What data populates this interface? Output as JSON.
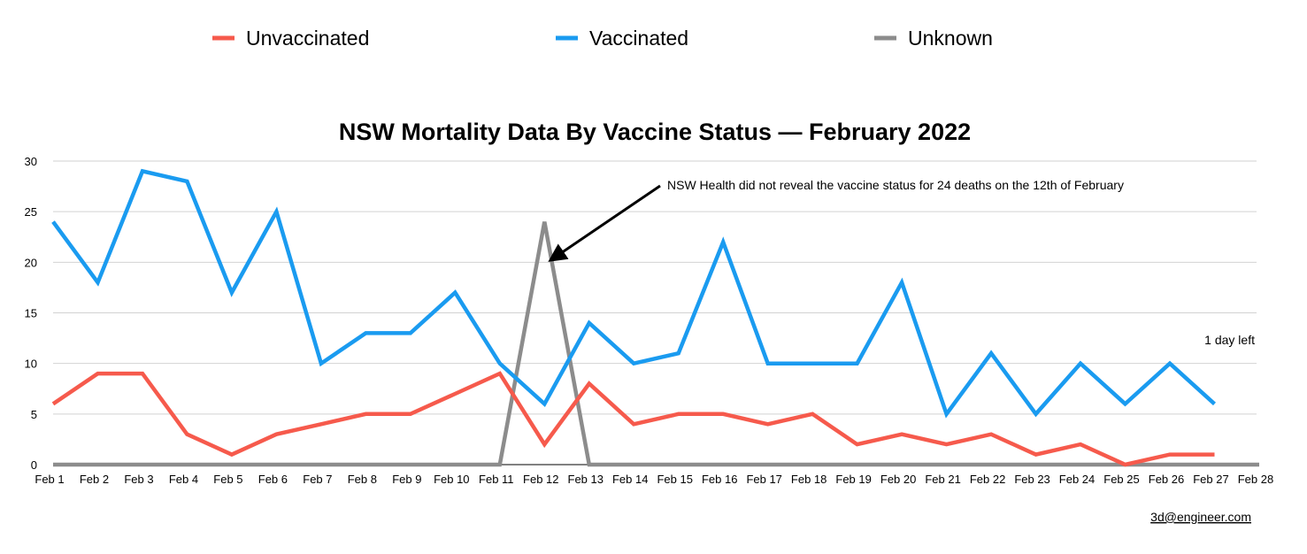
{
  "chart_data": {
    "type": "line",
    "title": "NSW Mortality Data By Vaccine Status — February 2022",
    "categories": [
      "Feb 1",
      "Feb 2",
      "Feb 3",
      "Feb 4",
      "Feb 5",
      "Feb 6",
      "Feb 7",
      "Feb 8",
      "Feb 9",
      "Feb 10",
      "Feb 11",
      "Feb 12",
      "Feb 13",
      "Feb 14",
      "Feb 15",
      "Feb 16",
      "Feb 17",
      "Feb 18",
      "Feb 19",
      "Feb 20",
      "Feb 21",
      "Feb 22",
      "Feb 23",
      "Feb 24",
      "Feb 25",
      "Feb 26",
      "Feb 27",
      "Feb 28"
    ],
    "ylim": [
      0,
      30
    ],
    "yticks": [
      0,
      5,
      10,
      15,
      20,
      25,
      30
    ],
    "grid": true,
    "legend_position": "top",
    "series": [
      {
        "name": "Unvaccinated",
        "color": "#f65a4c",
        "values": [
          6,
          9,
          9,
          3,
          1,
          3,
          4,
          5,
          5,
          7,
          9,
          2,
          8,
          4,
          5,
          5,
          4,
          5,
          2,
          3,
          2,
          3,
          1,
          2,
          0,
          1,
          1,
          null
        ]
      },
      {
        "name": "Vaccinated",
        "color": "#1a9bf0",
        "values": [
          24,
          18,
          29,
          28,
          17,
          25,
          10,
          13,
          13,
          17,
          10,
          6,
          14,
          10,
          11,
          22,
          10,
          10,
          10,
          18,
          5,
          11,
          5,
          10,
          6,
          10,
          6,
          null
        ]
      },
      {
        "name": "Unknown",
        "color": "#8c8c8c",
        "values": [
          0,
          0,
          0,
          0,
          0,
          0,
          0,
          0,
          0,
          0,
          0,
          24,
          0,
          0,
          0,
          0,
          0,
          0,
          0,
          0,
          0,
          0,
          0,
          0,
          0,
          0,
          0,
          0
        ]
      }
    ],
    "annotations": [
      {
        "text": "NSW Health did not reveal the vaccine status for 24 deaths on the 12th of February",
        "points_to": {
          "x": "Feb 12",
          "y": 20
        }
      },
      {
        "text": "1 day left",
        "near": {
          "x": "Feb 27",
          "y": 12
        }
      }
    ]
  },
  "credit": "3d@engineer.com"
}
